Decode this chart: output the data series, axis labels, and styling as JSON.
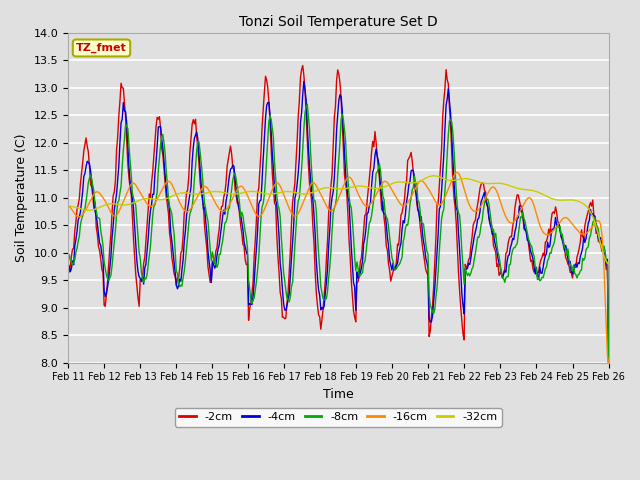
{
  "title": "Tonzi Soil Temperature Set D",
  "xlabel": "Time",
  "ylabel": "Soil Temperature (C)",
  "ylim": [
    8.0,
    14.0
  ],
  "yticks": [
    8.0,
    8.5,
    9.0,
    9.5,
    10.0,
    10.5,
    11.0,
    11.5,
    12.0,
    12.5,
    13.0,
    13.5,
    14.0
  ],
  "bg_color": "#e0e0e0",
  "plot_bg_color": "#e0e0e0",
  "series_colors": [
    "#dd0000",
    "#0000dd",
    "#00aa00",
    "#ff8800",
    "#cccc00"
  ],
  "series_labels": [
    "-2cm",
    "-4cm",
    "-8cm",
    "-16cm",
    "-32cm"
  ],
  "x_tick_labels": [
    "Feb 11",
    "Feb 12",
    "Feb 13",
    "Feb 14",
    "Feb 15",
    "Feb 16",
    "Feb 17",
    "Feb 18",
    "Feb 19",
    "Feb 20",
    "Feb 21",
    "Feb 22",
    "Feb 23",
    "Feb 24",
    "Feb 25",
    "Feb 26"
  ],
  "inset_label": "TZ_fmet",
  "inset_label_color": "#cc0000",
  "inset_label_bg": "#ffffcc",
  "inset_label_edge": "#aaaa00",
  "num_points": 480,
  "days": 15
}
